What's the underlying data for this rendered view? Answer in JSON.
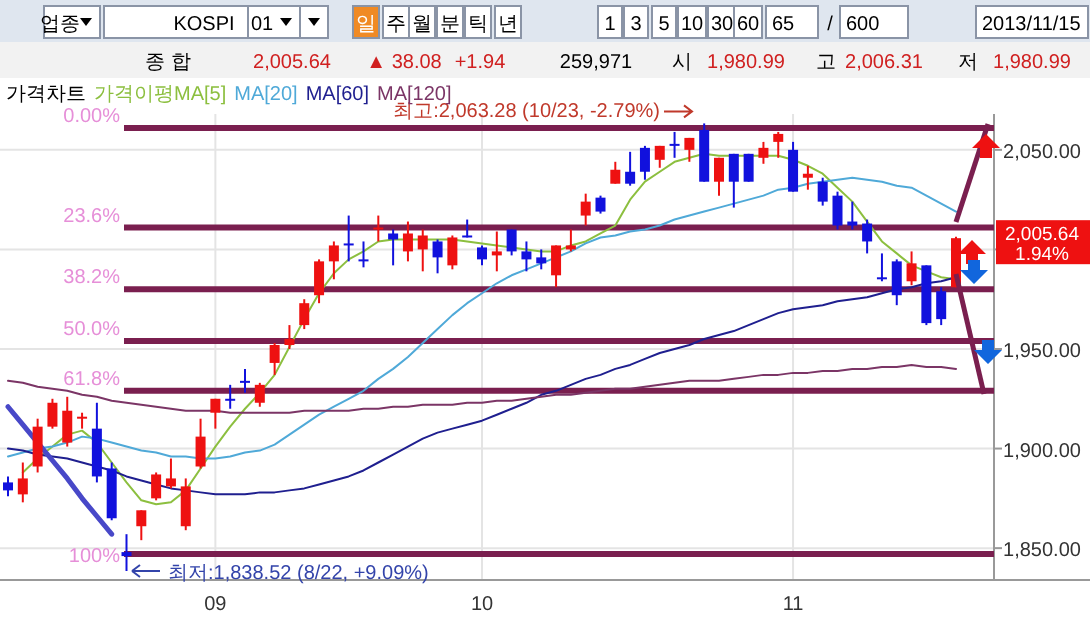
{
  "chart_data": {
    "type": "candlestick",
    "legend_title": "가격차트",
    "legend": "top left",
    "grid": true,
    "categories": [
      null,
      null,
      null,
      null,
      null,
      null,
      null,
      null,
      null,
      null,
      null,
      null,
      null,
      null,
      "09",
      null,
      null,
      null,
      null,
      null,
      null,
      null,
      null,
      null,
      null,
      null,
      null,
      null,
      null,
      null,
      null,
      null,
      "10",
      null,
      null,
      null,
      null,
      null,
      null,
      null,
      null,
      null,
      null,
      null,
      null,
      null,
      null,
      null,
      null,
      null,
      null,
      null,
      null,
      "11",
      null,
      null,
      null,
      null,
      null,
      null,
      null,
      null,
      null,
      null,
      null
    ],
    "ohlc": [
      [
        1883,
        1886,
        1876,
        1879
      ],
      [
        1877,
        1893,
        1873,
        1885
      ],
      [
        1891,
        1915,
        1888,
        1911
      ],
      [
        1911,
        1925,
        1910,
        1923
      ],
      [
        1903,
        1926,
        1901,
        1919
      ],
      [
        1915,
        1918,
        1910,
        1916
      ],
      [
        1910,
        1923,
        1883,
        1886
      ],
      [
        1890,
        1893,
        1864,
        1865
      ],
      [
        1848,
        1857,
        1838.52,
        1846
      ],
      [
        1861,
        1869,
        1854,
        1869
      ],
      [
        1875,
        1888,
        1874,
        1887
      ],
      [
        1881,
        1895,
        1880,
        1885
      ],
      [
        1861,
        1885,
        1859,
        1881
      ],
      [
        1891,
        1915,
        1890,
        1906
      ],
      [
        1918,
        1925,
        1910,
        1925
      ],
      [
        1925,
        1932,
        1920,
        1924
      ],
      [
        1934,
        1940,
        1928,
        1933
      ],
      [
        1923,
        1933,
        1921,
        1932
      ],
      [
        1943,
        1953,
        1937,
        1952
      ],
      [
        1952,
        1962,
        1950,
        1955
      ],
      [
        1962,
        1975,
        1960,
        1973
      ],
      [
        1977,
        1995,
        1973,
        1994
      ],
      [
        1994,
        2004,
        1985,
        2002
      ],
      [
        2003,
        2017,
        1994,
        2002
      ],
      [
        1995,
        2004,
        1991,
        1994
      ],
      [
        2010,
        2017,
        2004,
        2011
      ],
      [
        2008,
        2010,
        1992,
        2005
      ],
      [
        1999,
        2014,
        1994,
        2008
      ],
      [
        2000,
        2010,
        1989,
        2007
      ],
      [
        2004,
        2005,
        1988,
        1996
      ],
      [
        1992,
        2007,
        1990,
        2006
      ],
      [
        2007,
        2015,
        2006,
        2006
      ],
      [
        2001,
        2002,
        1992,
        1995
      ],
      [
        1997,
        2009,
        1989,
        1999
      ],
      [
        2010,
        2010,
        1997,
        1999
      ],
      [
        1999,
        2004,
        1989,
        1995
      ],
      [
        1996,
        2000,
        1990,
        1993
      ],
      [
        1987,
        2002,
        1981,
        2002
      ],
      [
        2000,
        2010,
        1999,
        2002
      ],
      [
        2017,
        2028,
        2012,
        2024
      ],
      [
        2026,
        2027,
        2018,
        2019
      ],
      [
        2033,
        2044,
        2033,
        2040
      ],
      [
        2039,
        2049,
        2032,
        2033
      ],
      [
        2051,
        2052,
        2035,
        2039
      ],
      [
        2045,
        2052,
        2041,
        2052
      ],
      [
        2053,
        2059,
        2046,
        2052
      ],
      [
        2050,
        2056,
        2044,
        2056
      ],
      [
        2060,
        2063.28,
        2034,
        2034
      ],
      [
        2034,
        2046,
        2027,
        2046
      ],
      [
        2048,
        2048,
        2021,
        2034
      ],
      [
        2048,
        2048,
        2034,
        2034
      ],
      [
        2046,
        2054,
        2043,
        2051
      ],
      [
        2054,
        2059,
        2046,
        2058
      ],
      [
        2050,
        2054,
        2029,
        2029
      ],
      [
        2036,
        2042,
        2030,
        2038
      ],
      [
        2034,
        2036,
        2022,
        2024
      ],
      [
        2027,
        2029,
        2010,
        2012
      ],
      [
        2014,
        2024,
        2010,
        2012
      ],
      [
        2013,
        2015,
        1998,
        2004
      ],
      [
        1986,
        1998,
        1984,
        1985
      ],
      [
        1994,
        1995,
        1972,
        1977
      ],
      [
        1984,
        1999,
        1982,
        1993
      ],
      [
        1992,
        1992,
        1962,
        1963
      ],
      [
        1979,
        1981,
        1962,
        1965
      ],
      [
        1980.99,
        2006.31,
        1980.99,
        2005.64
      ]
    ],
    "series": [
      {
        "name": "가격이평MA[5]",
        "type": "line",
        "color": "#8cbf3f",
        "values": [
          null,
          1888,
          1895,
          1901,
          1907,
          1909,
          1903,
          1893,
          1883,
          1874,
          1872,
          1873,
          1879,
          1890,
          1901,
          1911,
          1920,
          1928,
          1937,
          1951,
          1965,
          1978,
          1988,
          1995,
          1999,
          2004,
          2005,
          2005,
          2005,
          2005,
          2005,
          2004,
          2003,
          2002,
          2001,
          2000,
          1999,
          1999,
          2002,
          2004,
          2008,
          2012,
          2025,
          2034,
          2039,
          2044,
          2046,
          2048,
          2047,
          2047,
          2047,
          2047,
          2047,
          2045,
          2042,
          2038,
          2031,
          2024,
          2014,
          2004,
          1998,
          1992,
          1989,
          1986,
          1985
        ]
      },
      {
        "name": "MA[20]",
        "type": "line",
        "color": "#4fa9d8",
        "values": [
          1896,
          1898,
          1900,
          1901,
          1903,
          1906,
          1905,
          1903,
          1901,
          1899,
          1898,
          1896,
          1896,
          1895,
          1895,
          1896,
          1898,
          1899,
          1902,
          1907,
          1912,
          1917,
          1921,
          1925,
          1929,
          1935,
          1940,
          1946,
          1953,
          1960,
          1967,
          1973,
          1978,
          1983,
          1987,
          1990,
          1993,
          1996,
          1999,
          2003,
          2006,
          2007,
          2009,
          2010,
          2012,
          2015,
          2017,
          2019,
          2021,
          2023,
          2025,
          2027,
          2030,
          2031,
          2033,
          2034,
          2035,
          2036,
          2035,
          2034,
          2032,
          2031,
          2027,
          2023,
          2019
        ]
      },
      {
        "name": "MA[60]",
        "type": "line",
        "color": "#1f1f8f",
        "values": [
          1900,
          1899,
          1897,
          1896,
          1895,
          1893,
          1891,
          1889,
          1886,
          1884,
          1882,
          1880,
          1879,
          1878,
          1877,
          1877,
          1877,
          1878,
          1878,
          1879,
          1880,
          1882,
          1884,
          1886,
          1889,
          1893,
          1897,
          1901,
          1905,
          1908,
          1910,
          1912,
          1914,
          1917,
          1920,
          1923,
          1927,
          1929,
          1932,
          1935,
          1937,
          1940,
          1942,
          1945,
          1948,
          1950,
          1952,
          1955,
          1957,
          1959,
          1962,
          1965,
          1968,
          1970,
          1971,
          1972,
          1974,
          1975,
          1976,
          1978,
          1980,
          1981,
          1983,
          1984,
          1986
        ]
      },
      {
        "name": "MA[120]",
        "type": "line",
        "color": "#7b3566",
        "values": [
          1934,
          1933,
          1931,
          1930,
          1929,
          1927,
          1926,
          1924,
          1923,
          1922,
          1921,
          1920,
          1919,
          1919,
          1919,
          1918,
          1918,
          1918,
          1918,
          1918,
          1919,
          1919,
          1919,
          1919,
          1920,
          1920,
          1921,
          1921,
          1922,
          1922,
          1922,
          1923,
          1923,
          1924,
          1924,
          1925,
          1926,
          1927,
          1927,
          1928,
          1929,
          1930,
          1930,
          1931,
          1932,
          1933,
          1934,
          1934,
          1934,
          1935,
          1936,
          1937,
          1937,
          1938,
          1938,
          1939,
          1939,
          1940,
          1940,
          1941,
          1941,
          1942,
          1941,
          1941,
          1940
        ]
      },
      {
        "type": "line",
        "color": "#4848c8",
        "values": [
          1921,
          1912,
          1903,
          1894,
          1885,
          1875,
          1866,
          1857,
          null,
          null,
          null,
          null,
          null,
          null,
          null,
          null,
          null,
          null,
          null,
          null,
          null,
          null,
          null,
          null,
          null,
          null,
          null,
          null,
          null,
          null,
          null,
          null,
          null,
          null,
          null,
          null,
          null,
          null,
          null,
          null,
          null,
          null,
          null,
          null,
          null,
          null,
          null,
          null,
          null,
          null,
          null,
          null,
          null,
          null,
          null,
          null,
          null,
          null,
          null,
          null,
          null,
          null,
          null,
          null,
          null
        ]
      }
    ],
    "ylim": [
      1834,
      2068
    ],
    "yticks": [
      {
        "value": 1850,
        "label": "1,850.00"
      },
      {
        "value": 1900,
        "label": "1,900.00"
      },
      {
        "value": 1950,
        "label": "1,950.00"
      },
      {
        "value": 2000,
        "label": null
      },
      {
        "value": 2050,
        "label": "2,050.00"
      }
    ],
    "ref_lines": [
      {
        "axis": "y",
        "value": 2061,
        "color": "#7a1f4f"
      },
      {
        "axis": "y",
        "value": 2011,
        "color": "#7a1f4f"
      },
      {
        "axis": "y",
        "value": 1980,
        "color": "#7a1f4f"
      },
      {
        "axis": "y",
        "value": 1954,
        "color": "#7a1f4f"
      },
      {
        "axis": "y",
        "value": 1929,
        "color": "#7a1f4f"
      },
      {
        "axis": "y",
        "value": 1847,
        "color": "#7a1f4f"
      }
    ],
    "annotations": [
      {
        "text": "최고:2,063.28 (10/23, -2.79%)",
        "y": 2063.28
      },
      "최저:1,838.52 (8/22, +9.09%)",
      "0.00%",
      "23.6%",
      "38.2%",
      "50.0%",
      "61.8%",
      "100%",
      "2,005.64",
      "1.94%",
      "업종",
      "KOSPI",
      "01",
      "일",
      "주",
      "월",
      "분",
      "틱",
      "년",
      "1",
      "3",
      "5",
      "10",
      "30",
      "60",
      "65",
      "/",
      "600",
      "2013/11/15",
      "종 합",
      "2,005.64",
      "▲ 38.08",
      "+1.94",
      "259,971",
      "시",
      "1,980.99",
      "고",
      "2,006.31",
      "저",
      "1,980.99"
    ]
  }
}
